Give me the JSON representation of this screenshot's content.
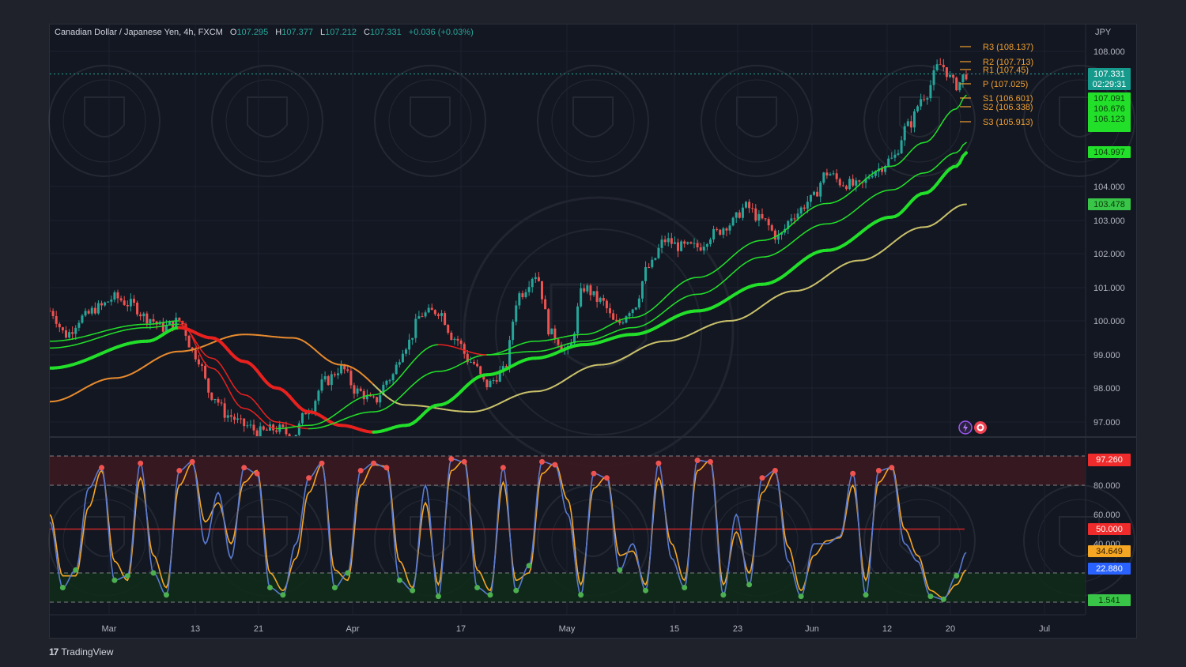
{
  "header": {
    "symbol": "Canadian Dollar / Japanese Yen, 4h, FXCM",
    "o_label": "O",
    "o": "107.295",
    "h_label": "H",
    "h": "107.377",
    "l_label": "L",
    "l": "107.212",
    "c_label": "C",
    "c": "107.331",
    "change": "+0.036 (+0.03%)"
  },
  "branding": {
    "logo": "TradingView"
  },
  "currency_label": "JPY",
  "colors": {
    "up": "#26a69a",
    "down": "#ef5350",
    "ema_green": "#22e02a",
    "ema_red": "#e8211f",
    "ema_orange": "#e68a2e",
    "ema_yellow": "#c9c06a",
    "k_line": "#5a7ad0",
    "d_line": "#f5a623",
    "pivot": "#f0a030",
    "overbought_zone": "#3a1820",
    "oversold_zone": "#0f2a1a"
  },
  "icons": [
    "lightning-icon",
    "target-icon",
    "tradingview-logo-icon"
  ],
  "chart_data": [
    {
      "type": "candlestick",
      "title": "Canadian Dollar / Japanese Yen, 4h, FXCM",
      "ylabel": "JPY",
      "ylim": [
        96.5,
        108.2
      ],
      "y_ticks": [
        "108.000",
        "104.000",
        "103.000",
        "102.000",
        "101.000",
        "100.000",
        "99.000",
        "98.000",
        "97.000"
      ],
      "x_ticks": [
        "Mar",
        "13",
        "21",
        "Apr",
        "17",
        "May",
        "15",
        "23",
        "Jun",
        "12",
        "20",
        "Jul"
      ],
      "last_price": "107.331",
      "countdown": "02:29:31",
      "price_badges": [
        "107.091",
        "106.676",
        "106.123",
        "104.997",
        "103.478"
      ],
      "pivots": [
        {
          "label": "R3 (108.137)",
          "value": 108.137
        },
        {
          "label": "R2 (107.713)",
          "value": 107.713
        },
        {
          "label": "R1 (107.45)",
          "value": 107.45
        },
        {
          "label": "P (107.025)",
          "value": 107.025
        },
        {
          "label": "S1 (106.601)",
          "value": 106.601
        },
        {
          "label": "S2 (106.338)",
          "value": 106.338
        },
        {
          "label": "S3 (105.913)",
          "value": 105.913
        }
      ],
      "series": [
        {
          "name": "close",
          "x": [
            0,
            5,
            10,
            15,
            20,
            25,
            30,
            35,
            40,
            45,
            50,
            55,
            60,
            65,
            70,
            75,
            80,
            85,
            90,
            95,
            100,
            105,
            110,
            115,
            120,
            125,
            130,
            135,
            140,
            145,
            150,
            155,
            160,
            165,
            170,
            175,
            180,
            185,
            190,
            195,
            200,
            205,
            210,
            215,
            220,
            225,
            230,
            235,
            240,
            245,
            250,
            255,
            260,
            265,
            270,
            275,
            280,
            283
          ],
          "y": [
            100.3,
            99.6,
            100.1,
            100.4,
            100.7,
            100.5,
            100.1,
            99.8,
            100.0,
            99.0,
            97.8,
            97.2,
            96.9,
            96.7,
            96.8,
            96.6,
            97.4,
            98.2,
            98.6,
            97.9,
            97.6,
            98.3,
            99.3,
            100.2,
            100.3,
            99.5,
            98.8,
            98.1,
            98.5,
            100.8,
            101.4,
            99.6,
            99.1,
            101.0,
            100.6,
            99.9,
            100.4,
            101.6,
            102.4,
            102.2,
            102.2,
            102.6,
            102.9,
            103.4,
            103.0,
            102.5,
            103.2,
            103.6,
            104.4,
            104.1,
            104.0,
            104.5,
            104.8,
            105.8,
            106.7,
            107.6,
            107.0,
            107.33
          ]
        },
        {
          "name": "ema_fast",
          "x": [
            0,
            30,
            40,
            50,
            60,
            70,
            80,
            100,
            120,
            135,
            150,
            165,
            180,
            200,
            220,
            240,
            260,
            270,
            280,
            283
          ],
          "y": [
            99.4,
            99.9,
            100.0,
            98.6,
            97.4,
            96.8,
            96.9,
            97.8,
            99.3,
            99.0,
            99.4,
            99.6,
            100.1,
            101.3,
            102.4,
            103.5,
            104.6,
            105.3,
            106.3,
            106.7
          ]
        },
        {
          "name": "ema_mid",
          "x": [
            0,
            30,
            40,
            50,
            60,
            70,
            80,
            100,
            120,
            135,
            150,
            165,
            180,
            200,
            220,
            240,
            260,
            270,
            280,
            283
          ],
          "y": [
            99.2,
            99.8,
            99.9,
            98.9,
            97.8,
            97.0,
            96.8,
            97.3,
            98.5,
            99.0,
            99.1,
            99.4,
            99.8,
            100.8,
            101.9,
            102.9,
            103.9,
            104.4,
            105.0,
            105.3
          ]
        },
        {
          "name": "ema_slow",
          "x": [
            0,
            30,
            40,
            50,
            60,
            70,
            80,
            90,
            100,
            110,
            120,
            135,
            150,
            165,
            180,
            200,
            220,
            240,
            260,
            270,
            280,
            283
          ],
          "y": [
            98.6,
            99.4,
            99.8,
            99.5,
            98.8,
            98.0,
            97.3,
            96.9,
            96.7,
            96.9,
            97.5,
            98.4,
            98.9,
            99.3,
            99.6,
            100.3,
            101.1,
            102.1,
            103.1,
            103.8,
            104.6,
            104.997
          ]
        },
        {
          "name": "ema_200",
          "x": [
            0,
            20,
            40,
            60,
            75,
            90,
            110,
            130,
            150,
            170,
            190,
            210,
            230,
            250,
            270,
            283
          ],
          "y": [
            97.6,
            98.3,
            99.1,
            99.6,
            99.5,
            98.7,
            97.5,
            97.3,
            97.9,
            98.7,
            99.4,
            100.0,
            100.9,
            101.8,
            102.8,
            103.478
          ]
        }
      ]
    },
    {
      "type": "line",
      "title": "Stochastic RSI",
      "ylim": [
        0,
        100
      ],
      "y_ticks": [
        "80.000",
        "60.000",
        "40.000"
      ],
      "levels": [
        97.26,
        80,
        50,
        20,
        0
      ],
      "value_badges": [
        "97.260",
        "50.000",
        "34.649",
        "22.880",
        "1.541"
      ],
      "series": [
        {
          "name": "K",
          "x": [
            0,
            4,
            8,
            12,
            16,
            20,
            24,
            28,
            32,
            36,
            40,
            44,
            48,
            52,
            56,
            60,
            64,
            68,
            72,
            76,
            80,
            84,
            88,
            92,
            96,
            100,
            104,
            108,
            112,
            116,
            120,
            124,
            128,
            132,
            136,
            140,
            144,
            148,
            152,
            156,
            160,
            164,
            168,
            172,
            176,
            180,
            184,
            188,
            192,
            196,
            200,
            204,
            208,
            212,
            216,
            220,
            224,
            228,
            232,
            236,
            240,
            244,
            248,
            252,
            256,
            260,
            264,
            268,
            272,
            276,
            280,
            283
          ],
          "y": [
            55,
            10,
            22,
            78,
            92,
            15,
            18,
            95,
            20,
            5,
            90,
            96,
            40,
            75,
            30,
            92,
            88,
            10,
            5,
            40,
            85,
            95,
            10,
            20,
            90,
            95,
            92,
            15,
            8,
            80,
            4,
            98,
            96,
            10,
            5,
            92,
            8,
            25,
            96,
            94,
            60,
            5,
            88,
            85,
            22,
            40,
            8,
            95,
            30,
            10,
            97,
            96,
            5,
            60,
            12,
            85,
            90,
            28,
            4,
            40,
            40,
            45,
            88,
            5,
            90,
            92,
            40,
            28,
            4,
            2,
            18,
            34
          ]
        },
        {
          "name": "D",
          "x": [
            0,
            4,
            8,
            12,
            16,
            20,
            24,
            28,
            32,
            36,
            40,
            44,
            48,
            52,
            56,
            60,
            64,
            68,
            72,
            76,
            80,
            84,
            88,
            92,
            96,
            100,
            104,
            108,
            112,
            116,
            120,
            124,
            128,
            132,
            136,
            140,
            144,
            148,
            152,
            156,
            160,
            164,
            168,
            172,
            176,
            180,
            184,
            188,
            192,
            196,
            200,
            204,
            208,
            212,
            216,
            220,
            224,
            228,
            232,
            236,
            240,
            244,
            248,
            252,
            256,
            260,
            264,
            268,
            272,
            276,
            280,
            283
          ],
          "y": [
            60,
            18,
            18,
            65,
            90,
            28,
            15,
            85,
            32,
            10,
            80,
            95,
            55,
            68,
            40,
            82,
            90,
            20,
            8,
            30,
            75,
            94,
            22,
            15,
            80,
            94,
            93,
            28,
            10,
            68,
            12,
            90,
            97,
            22,
            8,
            82,
            15,
            20,
            88,
            95,
            70,
            12,
            78,
            86,
            32,
            35,
            12,
            85,
            40,
            15,
            90,
            97,
            12,
            48,
            20,
            75,
            89,
            38,
            8,
            32,
            42,
            44,
            80,
            15,
            82,
            93,
            50,
            32,
            8,
            3,
            12,
            22
          ]
        }
      ]
    }
  ]
}
